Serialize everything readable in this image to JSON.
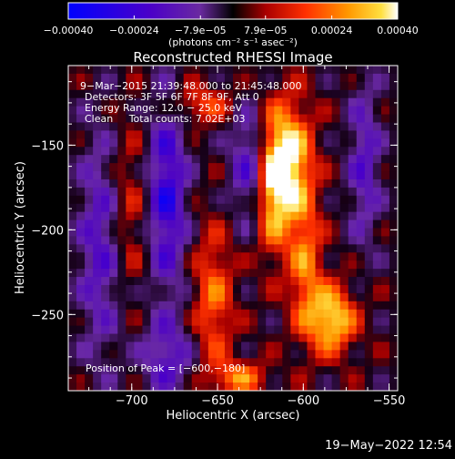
{
  "chart_data": {
    "type": "heatmap",
    "title": "Reconstructed RHESSI Image",
    "xlabel": "Heliocentric X (arcsec)",
    "ylabel": "Heliocentric Y (arcsec)",
    "xlim": [
      -737,
      -545
    ],
    "ylim": [
      -295,
      -103
    ],
    "x_ticks": [
      -700,
      -650,
      -600,
      -550
    ],
    "x_tick_labels": [
      "−700",
      "−650",
      "−600",
      "−550"
    ],
    "y_ticks": [
      -150,
      -200,
      -250
    ],
    "y_tick_labels": [
      "−150",
      "−200",
      "−250"
    ],
    "colorbar": {
      "range": [
        -0.0004,
        0.0004
      ],
      "ticks": [
        -0.0004,
        -0.00024,
        -7.9e-05,
        7.9e-05,
        0.00024,
        0.0004
      ],
      "tick_labels": [
        "−0.00040",
        "−0.00024",
        "−7.9e−05",
        "7.9e−05",
        "0.00024",
        "0.00040"
      ],
      "units_label": "(photons cm⁻² s⁻¹ asec⁻²)"
    },
    "annotations": [
      "9−Mar−2015 21:39:48.000 to 21:45:48.000",
      "Detectors: 3F 5F 6F 7F 8F 9F, Att 0",
      "Energy Range: 12.0 − 25.0 keV",
      "Clean     Total counts: 7.02E+03"
    ],
    "peak_label": "Position of Peak = [−600,−180]",
    "peak": [
      -600,
      -180
    ]
  },
  "footer": {
    "timestamp": "19−May−2022 12:54"
  }
}
